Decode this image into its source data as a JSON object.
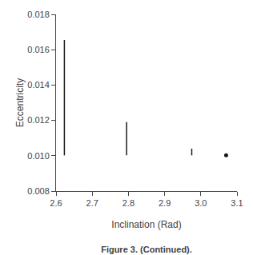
{
  "chart_data": {
    "type": "segments",
    "title": "Figure 3. (Continued).",
    "xlabel": "Inclination (Rad)",
    "ylabel": "Eccentricity",
    "xlim": [
      2.6,
      3.1
    ],
    "xticks": [
      2.6,
      2.7,
      2.8,
      2.9,
      {
        "value": 3.0,
        "label": "3.0"
      },
      3.1
    ],
    "ylim": [
      0.008,
      0.018
    ],
    "yticks": [
      0.008,
      {
        "value": 0.01,
        "label": "0.010"
      },
      0.012,
      0.014,
      0.016,
      0.018
    ],
    "grid": false,
    "series": [
      {
        "type": "segments",
        "color": "#1a1a1a",
        "x": [
          2.623,
          2.795,
          2.975
        ],
        "y_bottom": [
          0.01002,
          0.01002,
          0.01002
        ],
        "y_top": [
          0.01655,
          0.0119,
          0.0104
        ]
      },
      {
        "type": "scatter",
        "color": "#1a1a1a",
        "marker": "dot",
        "x": [
          3.07
        ],
        "values": [
          0.01002
        ]
      }
    ]
  }
}
